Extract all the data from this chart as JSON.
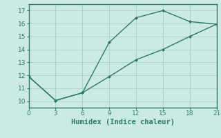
{
  "line1_x": [
    0,
    3,
    6,
    9,
    12,
    15,
    18,
    21
  ],
  "line1_y": [
    11.9,
    10.05,
    10.65,
    14.55,
    16.45,
    17.0,
    16.15,
    15.95
  ],
  "line2_x": [
    0,
    3,
    6,
    9,
    12,
    15,
    18,
    21
  ],
  "line2_y": [
    11.9,
    10.05,
    10.65,
    11.9,
    13.2,
    14.0,
    15.0,
    15.95
  ],
  "line_color": "#2a7a6a",
  "bg_color": "#cceae4",
  "grid_color": "#a8d5cc",
  "xlabel": "Humidex (Indice chaleur)",
  "xlim": [
    0,
    21
  ],
  "ylim": [
    9.5,
    17.5
  ],
  "xticks": [
    0,
    3,
    6,
    9,
    12,
    15,
    18,
    21
  ],
  "yticks": [
    10,
    11,
    12,
    13,
    14,
    15,
    16,
    17
  ],
  "xlabel_fontsize": 7.5,
  "tick_fontsize": 6.5
}
